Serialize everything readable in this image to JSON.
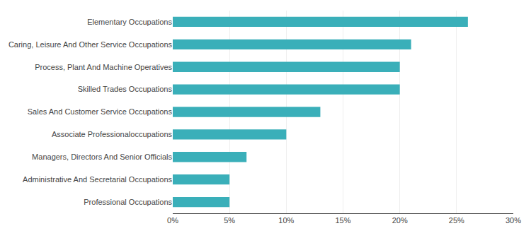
{
  "chart_data": {
    "type": "bar",
    "orientation": "horizontal",
    "categories": [
      "Professional Occupations",
      "Administrative And Secretarial Occupations",
      "Managers, Directors And Senior Officials",
      "Associate Professionaloccupations",
      "Sales And Customer Service Occupations",
      "Skilled Trades Occupations",
      "Process, Plant And Machine Operatives",
      "Caring, Leisure And Other Service Occupations",
      "Elementary Occupations"
    ],
    "values": [
      0.05,
      0.05,
      0.065,
      0.1,
      0.13,
      0.2,
      0.2,
      0.21,
      0.26
    ],
    "color": "#3AAFB9",
    "xlim": [
      0,
      0.3
    ],
    "xticks": [
      {
        "value": 0,
        "label": "0%"
      },
      {
        "value": 0.05,
        "label": "5%"
      },
      {
        "value": 0.1,
        "label": "10%"
      },
      {
        "value": 0.15,
        "label": "15%"
      },
      {
        "value": 0.2,
        "label": "20%"
      },
      {
        "value": 0.25,
        "label": "25%"
      },
      {
        "value": 0.3,
        "label": "30%"
      }
    ],
    "grid": true
  }
}
